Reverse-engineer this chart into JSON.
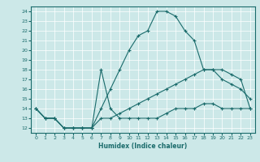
{
  "xlabel": "Humidex (Indice chaleur)",
  "bg_color": "#cce8e8",
  "line_color": "#1a6b6b",
  "grid_color": "#ffffff",
  "xlim": [
    -0.5,
    23.5
  ],
  "ylim": [
    11.5,
    24.5
  ],
  "xticks": [
    0,
    1,
    2,
    3,
    4,
    5,
    6,
    7,
    8,
    9,
    10,
    11,
    12,
    13,
    14,
    15,
    16,
    17,
    18,
    19,
    20,
    21,
    22,
    23
  ],
  "yticks": [
    12,
    13,
    14,
    15,
    16,
    17,
    18,
    19,
    20,
    21,
    22,
    23,
    24
  ],
  "line1_x": [
    0,
    1,
    2,
    3,
    4,
    5,
    6,
    7,
    8,
    9,
    10,
    11,
    12,
    13,
    14,
    15,
    16,
    17,
    18,
    19,
    20,
    21,
    22,
    23
  ],
  "line1_y": [
    14,
    13,
    13,
    12,
    12,
    12,
    12,
    18,
    14,
    13,
    13,
    13,
    13,
    13,
    13.5,
    14,
    14,
    14,
    14.5,
    14.5,
    14,
    14,
    14,
    14
  ],
  "line2_x": [
    0,
    1,
    2,
    3,
    4,
    5,
    6,
    7,
    8,
    9,
    10,
    11,
    12,
    13,
    14,
    15,
    16,
    17,
    18,
    19,
    20,
    21,
    22,
    23
  ],
  "line2_y": [
    14,
    13,
    13,
    12,
    12,
    12,
    12,
    13,
    13,
    13.5,
    14,
    14.5,
    15,
    15.5,
    16,
    16.5,
    17,
    17.5,
    18,
    18,
    18,
    17.5,
    17,
    14
  ],
  "line3_x": [
    0,
    1,
    2,
    3,
    4,
    5,
    6,
    7,
    8,
    9,
    10,
    11,
    12,
    13,
    14,
    15,
    16,
    17,
    18,
    19,
    20,
    21,
    22,
    23
  ],
  "line3_y": [
    14,
    13,
    13,
    12,
    12,
    12,
    12,
    14,
    16,
    18,
    20,
    21.5,
    22,
    24,
    24,
    23.5,
    22,
    21,
    18,
    18,
    17,
    16.5,
    16,
    15
  ]
}
